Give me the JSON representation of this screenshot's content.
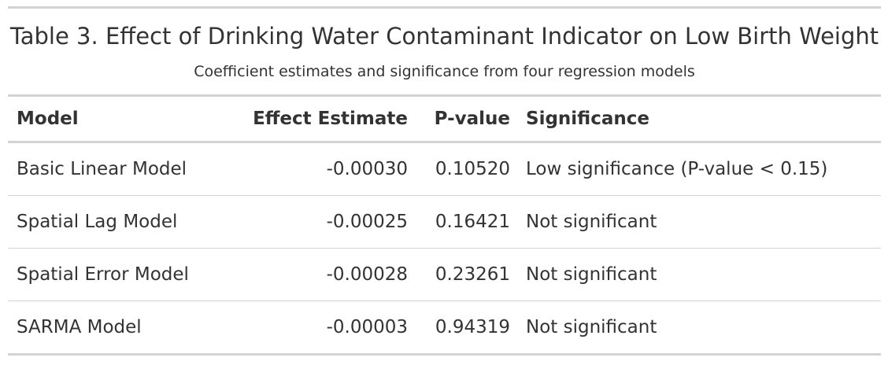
{
  "table": {
    "title": "Table 3. Effect of Drinking Water Contaminant Indicator on Low Birth Weight",
    "subtitle": "Coefficient estimates and significance from four regression models",
    "columns": [
      "Model",
      "Effect Estimate",
      "P-value",
      "Significance"
    ],
    "rows": [
      {
        "model": "Basic Linear Model",
        "estimate": "-0.00030",
        "pvalue": "0.10520",
        "significance": "Low significance (P-value < 0.15)"
      },
      {
        "model": "Spatial Lag Model",
        "estimate": "-0.00025",
        "pvalue": "0.16421",
        "significance": "Not significant"
      },
      {
        "model": "Spatial Error Model",
        "estimate": "-0.00028",
        "pvalue": "0.23261",
        "significance": "Not significant"
      },
      {
        "model": "SARMA Model",
        "estimate": "-0.00003",
        "pvalue": "0.94319",
        "significance": "Not significant"
      }
    ]
  }
}
